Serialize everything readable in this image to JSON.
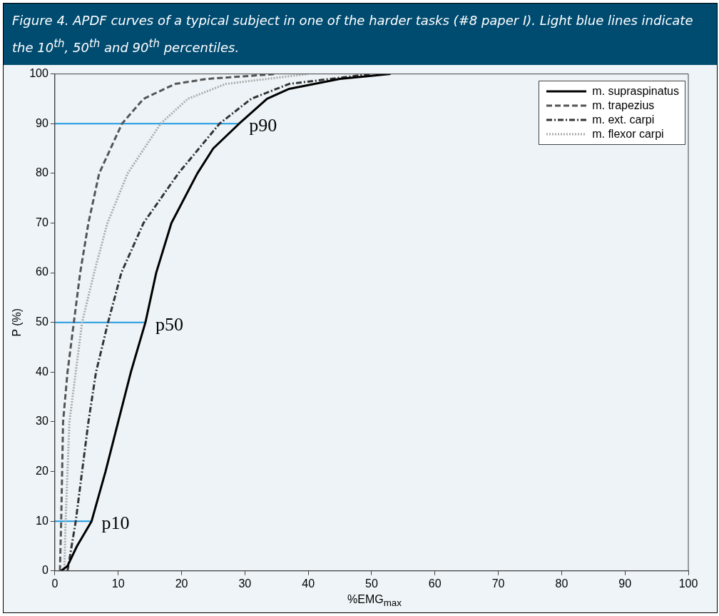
{
  "chart_data": {
    "type": "line",
    "title": "Figure 4. APDF curves of a typical subject in one of the harder tasks (#8 paper I). Light blue lines indicate the 10$^{th}$, 50$^{th}$ and 90$^{th}$ percentiles.",
    "xlabel": "%EMG$_{max}$",
    "ylabel": "P (%)",
    "xlim": [
      0,
      100
    ],
    "xticks": [
      0,
      10,
      20,
      30,
      40,
      50,
      60,
      70,
      80,
      90,
      100
    ],
    "ylim": [
      0,
      100
    ],
    "yticks": [
      0,
      10,
      20,
      30,
      40,
      50,
      60,
      70,
      80,
      90,
      100
    ],
    "grid": false,
    "legend": "top right",
    "marker": "none",
    "series": [
      {
        "name": "m. supraspinatus",
        "color": "#000000",
        "line_style": "solid",
        "x": [
          1,
          2,
          3.5,
          5.8,
          8,
          10,
          12,
          14.3,
          16,
          18.4,
          22.5,
          25,
          29.1,
          33.5,
          37,
          41,
          45,
          53
        ],
        "values": [
          0,
          1,
          5,
          10,
          20,
          30,
          40,
          50,
          60,
          70,
          80,
          85,
          90,
          95,
          97,
          98,
          99,
          100
        ]
      },
      {
        "name": "m. trapezius",
        "color": "#555555",
        "line_style": "dashed",
        "x": [
          0.8,
          1,
          1.3,
          2,
          3,
          4,
          5.3,
          7,
          10.6,
          14,
          19,
          24,
          35
        ],
        "values": [
          0,
          10,
          30,
          40,
          50,
          60,
          70,
          80,
          90,
          95,
          98,
          99,
          100
        ]
      },
      {
        "name": "m. ext. carpi",
        "color": "#333333",
        "line_style": "dashdot",
        "x": [
          2,
          3.3,
          4.3,
          5.3,
          6.5,
          8.4,
          10.5,
          14,
          19.5,
          26,
          31,
          37,
          50
        ],
        "values": [
          0,
          10,
          20,
          30,
          40,
          50,
          60,
          70,
          80,
          90,
          95,
          98,
          100
        ]
      },
      {
        "name": "m. flexor carpi",
        "color": "#aaaaaa",
        "line_style": "dotted",
        "x": [
          1.5,
          1.7,
          2.3,
          4.3,
          6.2,
          8.3,
          11.5,
          16.7,
          21,
          27,
          40
        ],
        "values": [
          0,
          10,
          30,
          50,
          60,
          70,
          80,
          90,
          95,
          98,
          100
        ]
      },
      {
        "color": "#1e9be0",
        "line_style": "solid",
        "x": [
          0,
          5.8
        ],
        "values": [
          10,
          10
        ]
      },
      {
        "color": "#1e9be0",
        "line_style": "solid",
        "x": [
          0,
          14.3
        ],
        "values": [
          50,
          50
        ]
      },
      {
        "color": "#1e9be0",
        "line_style": "solid",
        "x": [
          0,
          29.1
        ],
        "values": [
          90,
          90
        ]
      }
    ],
    "annotations": [
      {
        "text": "p10",
        "x": 5.8,
        "y": 10
      },
      {
        "text": "p50",
        "x": 14.3,
        "y": 50
      },
      {
        "text": "p90",
        "x": 29.1,
        "y": 90
      }
    ]
  }
}
